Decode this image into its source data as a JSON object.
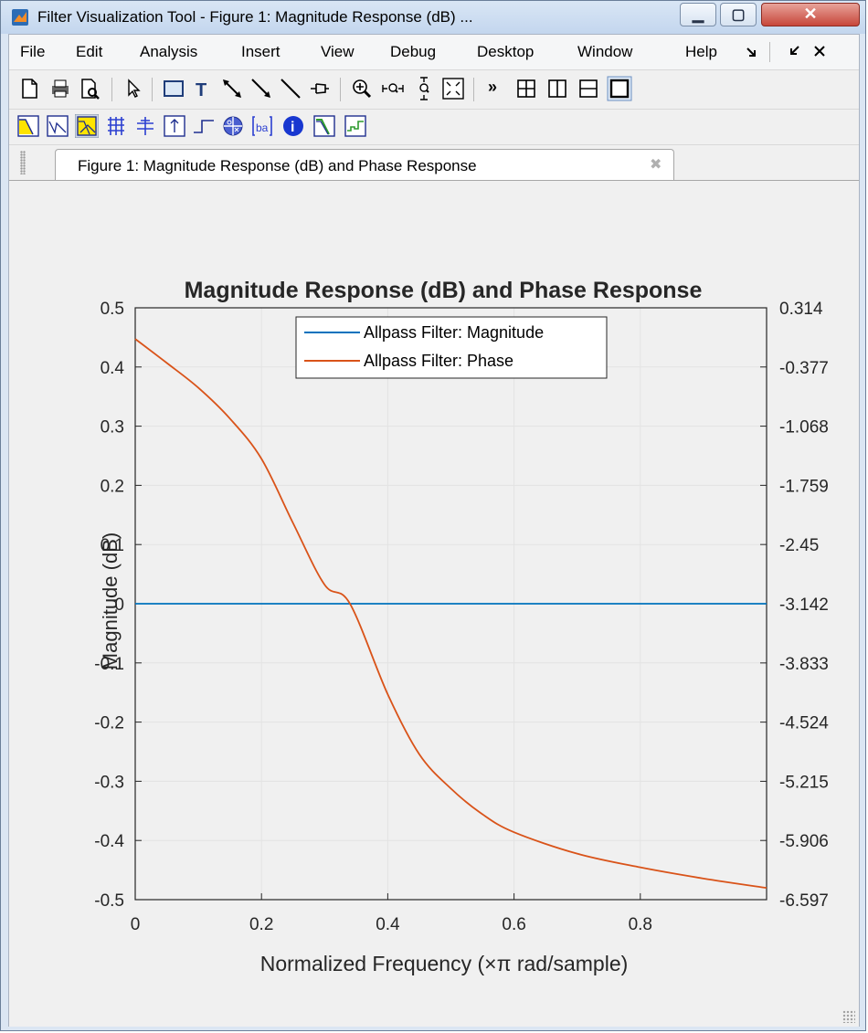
{
  "window": {
    "title": "Filter Visualization Tool - Figure 1: Magnitude Response (dB) ..."
  },
  "menu": [
    "File",
    "Edit",
    "Analysis",
    "Insert",
    "View",
    "Debug",
    "Desktop",
    "Window",
    "Help"
  ],
  "menu_dock_icons": [
    "undock-arrow-icon",
    "pin-arrow-icon",
    "close-x-icon"
  ],
  "toolbar1": [
    "new-figure-icon",
    "print-icon",
    "print-preview-icon",
    "select-pointer-icon",
    "rectangle-icon",
    "text-insert-icon",
    "double-arrow-icon",
    "arrow-icon",
    "line-icon",
    "pin-icon",
    "zoom-in-icon",
    "zoom-x-icon",
    "zoom-y-icon",
    "full-view-icon",
    "overflow-icon",
    "tile-icon",
    "left-right-icon",
    "top-bottom-icon",
    "maximize-icon"
  ],
  "toolbar2": [
    "magnitude-response-icon",
    "phase-response-icon",
    "magnitude-phase-icon",
    "group-delay-icon",
    "phase-delay-icon",
    "impulse-response-icon",
    "step-response-icon",
    "pole-zero-icon",
    "filter-coefficients-icon",
    "filter-info-icon",
    "magnitude-estimate-icon",
    "round-off-noise-icon"
  ],
  "tab": {
    "label": "Figure 1: Magnitude Response (dB) and Phase Response"
  },
  "chart_data": {
    "type": "line",
    "title": "Magnitude Response (dB) and Phase Response",
    "xlabel": "Normalized Frequency (×π rad/sample)",
    "ylabel": "Magnitude (dB)",
    "xlim": [
      0,
      1
    ],
    "ylim": [
      -0.5,
      0.5
    ],
    "y2lim": [
      -6.597,
      0.314
    ],
    "xticks": [
      "0",
      "0.2",
      "0.4",
      "0.6",
      "0.8"
    ],
    "yticks": [
      "0.5",
      "0.4",
      "0.3",
      "0.2",
      "0.1",
      "0",
      "-0.1",
      "-0.2",
      "-0.3",
      "-0.4",
      "-0.5"
    ],
    "y2ticks": [
      "0.314",
      "-0.377",
      "-1.068",
      "-1.759",
      "-2.45",
      "-3.142",
      "-3.833",
      "-4.524",
      "-5.215",
      "-5.906",
      "-6.597"
    ],
    "grid": true,
    "legend_position": "top-center",
    "series": [
      {
        "name": "Allpass Filter: Magnitude",
        "axis": "left",
        "color": "#0072bd",
        "x": [
          0,
          1
        ],
        "y": [
          0,
          0
        ]
      },
      {
        "name": "Allpass Filter: Phase",
        "axis": "right",
        "color": "#d95319",
        "x": [
          0,
          0.05,
          0.1,
          0.15,
          0.2,
          0.25,
          0.3,
          0.34,
          0.4,
          0.45,
          0.5,
          0.55,
          0.6,
          0.7,
          0.8,
          0.9,
          1.0
        ],
        "y": [
          -0.05,
          -0.33,
          -0.62,
          -0.98,
          -1.45,
          -2.2,
          -2.92,
          -3.14,
          -4.2,
          -4.9,
          -5.3,
          -5.6,
          -5.81,
          -6.06,
          -6.22,
          -6.35,
          -6.46
        ]
      }
    ]
  }
}
